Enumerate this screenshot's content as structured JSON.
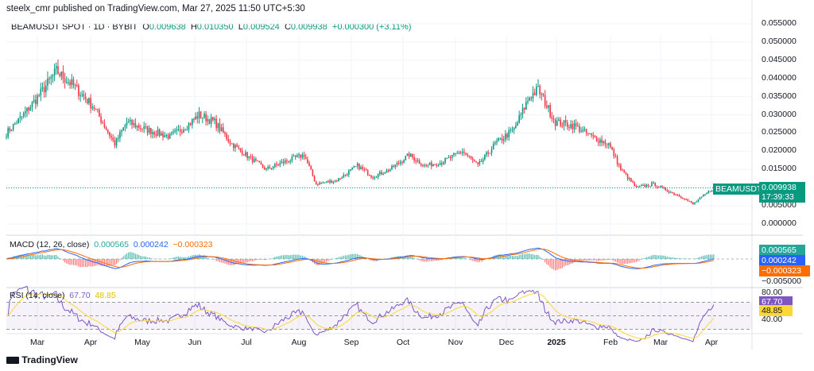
{
  "header": {
    "publisher": "steelx_cmr published on TradingView.com, Mar 27, 2025 11:50 UTC+5:30"
  },
  "legend": {
    "symbol": "BEAMUSDT SPOT · 1D · BYBIT",
    "o_label": "O",
    "o": "0.009638",
    "h_label": "H",
    "h": "0.010350",
    "l_label": "L",
    "l": "0.009524",
    "c_label": "C",
    "c": "0.009938",
    "change": "+0.000300 (+3.11%)"
  },
  "price_axis": [
    "0.055000",
    "0.050000",
    "0.045000",
    "0.040000",
    "0.035000",
    "0.030000",
    "0.025000",
    "0.020000",
    "0.015000",
    "0.010000",
    "0.005000",
    "0.000000"
  ],
  "last_price": {
    "symbol": "BEAMUSDT",
    "price": "0.009938",
    "countdown": "17:39:33"
  },
  "macd": {
    "label": "MACD (12, 26, close)",
    "hist": "0.000565",
    "macd": "0.000242",
    "signal": "−0.000323",
    "axis": "−0.005000"
  },
  "rsi": {
    "label": "RSI (14, close)",
    "rsi": "67.70",
    "ma": "48.85",
    "axis_top": "80.00",
    "axis_bottom": "40.00"
  },
  "time_axis": [
    "Mar",
    "Apr",
    "May",
    "Jun",
    "Jul",
    "Aug",
    "Sep",
    "Oct",
    "Nov",
    "Dec",
    "2025",
    "Feb",
    "Mar",
    "Apr"
  ],
  "footer": {
    "brand": "TradingView"
  },
  "colors": {
    "up": "#089981",
    "down": "#f23645",
    "macd": "#2962ff",
    "signal": "#ff6d00",
    "rsi": "#7e57c2",
    "rsi_ma": "#fdd835"
  },
  "chart_data": {
    "type": "candlestick",
    "title": "BEAMUSDT SPOT · 1D · BYBIT",
    "ylim": [
      0,
      0.055
    ],
    "approx_closes": [
      [
        "2024-02-10",
        0.025
      ],
      [
        "2024-02-20",
        0.03
      ],
      [
        "2024-03-01",
        0.036
      ],
      [
        "2024-03-10",
        0.042
      ],
      [
        "2024-03-20",
        0.038
      ],
      [
        "2024-04-01",
        0.032
      ],
      [
        "2024-04-13",
        0.022
      ],
      [
        "2024-04-20",
        0.028
      ],
      [
        "2024-05-01",
        0.026
      ],
      [
        "2024-05-15",
        0.024
      ],
      [
        "2024-05-25",
        0.027
      ],
      [
        "2024-06-01",
        0.03
      ],
      [
        "2024-06-10",
        0.028
      ],
      [
        "2024-06-20",
        0.022
      ],
      [
        "2024-07-01",
        0.018
      ],
      [
        "2024-07-10",
        0.015
      ],
      [
        "2024-07-20",
        0.017
      ],
      [
        "2024-08-01",
        0.019
      ],
      [
        "2024-08-08",
        0.011
      ],
      [
        "2024-08-20",
        0.012
      ],
      [
        "2024-09-01",
        0.016
      ],
      [
        "2024-09-10",
        0.013
      ],
      [
        "2024-09-20",
        0.015
      ],
      [
        "2024-10-01",
        0.019
      ],
      [
        "2024-10-10",
        0.016
      ],
      [
        "2024-10-20",
        0.017
      ],
      [
        "2024-11-01",
        0.02
      ],
      [
        "2024-11-10",
        0.016
      ],
      [
        "2024-11-20",
        0.022
      ],
      [
        "2024-12-01",
        0.026
      ],
      [
        "2024-12-10",
        0.035
      ],
      [
        "2024-12-15",
        0.037
      ],
      [
        "2024-12-25",
        0.028
      ],
      [
        "2025-01-05",
        0.027
      ],
      [
        "2025-01-15",
        0.024
      ],
      [
        "2025-01-25",
        0.022
      ],
      [
        "2025-02-01",
        0.015
      ],
      [
        "2025-02-10",
        0.01
      ],
      [
        "2025-02-20",
        0.011
      ],
      [
        "2025-03-01",
        0.009
      ],
      [
        "2025-03-10",
        0.007
      ],
      [
        "2025-03-15",
        0.0055
      ],
      [
        "2025-03-27",
        0.009938
      ]
    ]
  }
}
